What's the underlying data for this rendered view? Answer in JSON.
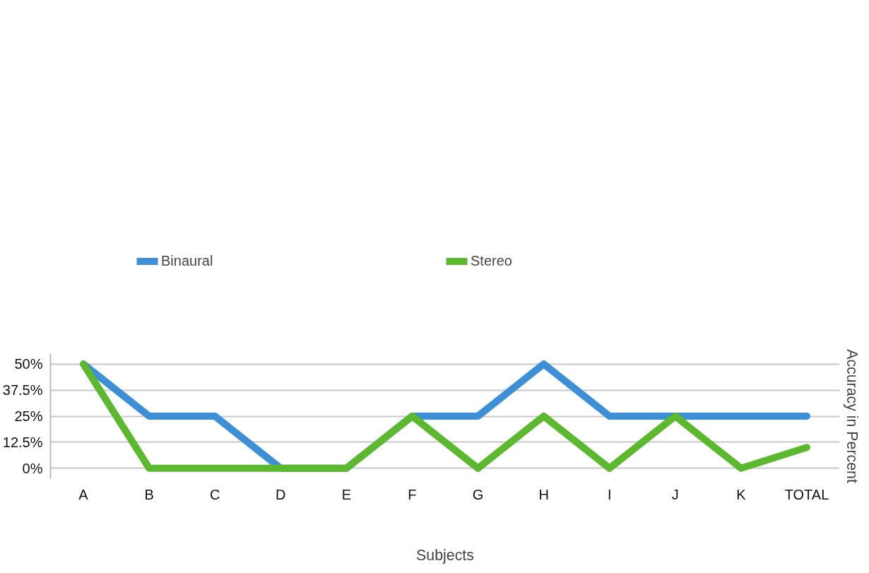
{
  "chart_data": {
    "type": "line",
    "xlabel": "Subjects",
    "ylabel": "Accuracy in Percent",
    "categories": [
      "A",
      "B",
      "C",
      "D",
      "E",
      "F",
      "G",
      "H",
      "I",
      "J",
      "K",
      "TOTAL"
    ],
    "series": [
      {
        "name": "Binaural",
        "color": "#3d8fd6",
        "values": [
          50,
          25,
          25,
          0,
          0,
          25,
          25,
          50,
          25,
          25,
          25,
          25
        ]
      },
      {
        "name": "Stereo",
        "color": "#5cb82e",
        "values": [
          50,
          0,
          0,
          0,
          0,
          25,
          0,
          25,
          0,
          25,
          0,
          10
        ]
      }
    ],
    "ylim": [
      -5,
      55
    ],
    "yticks": [
      {
        "value": 0,
        "label": "0%"
      },
      {
        "value": 12.5,
        "label": "12.5%"
      },
      {
        "value": 25,
        "label": "25%"
      },
      {
        "value": 37.5,
        "label": "37.5%"
      },
      {
        "value": 50,
        "label": "50%"
      }
    ],
    "grid": "y",
    "legend": "top",
    "marker": "none",
    "line_style": "solid"
  }
}
